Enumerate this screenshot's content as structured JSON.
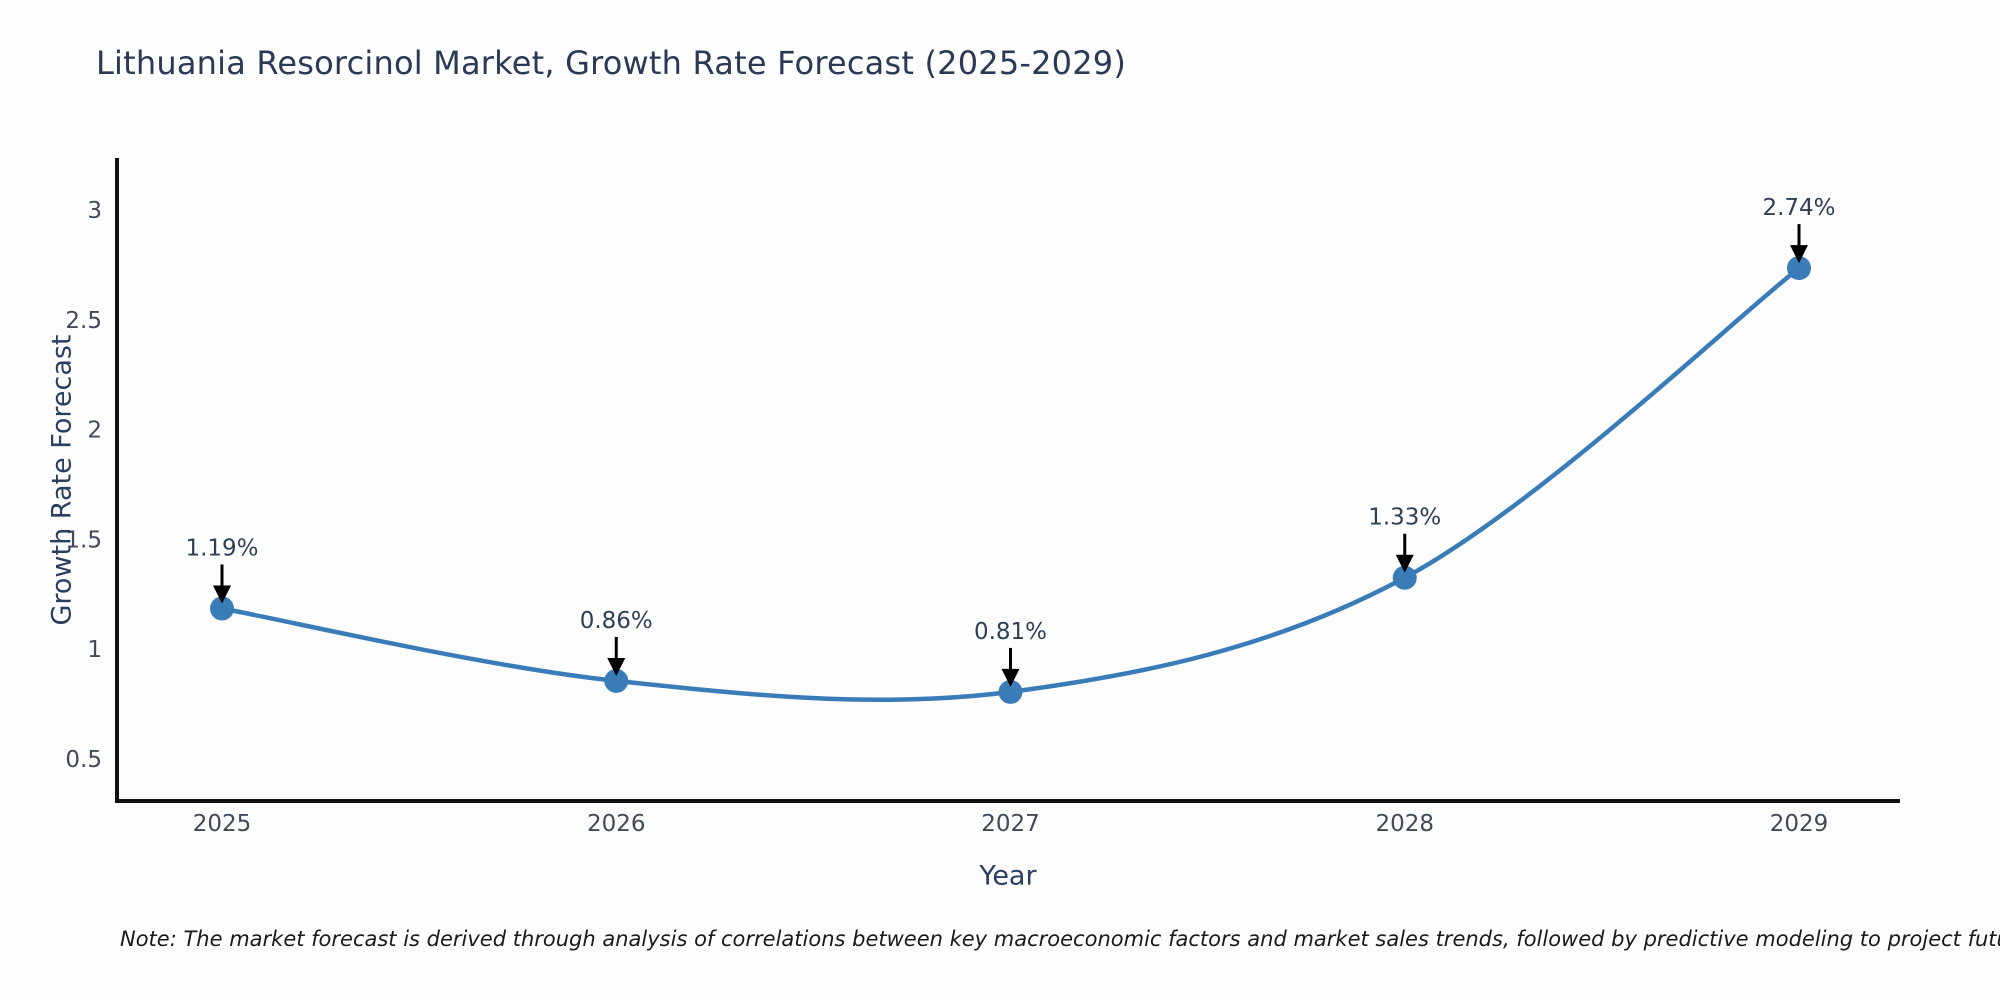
{
  "title": "Lithuania Resorcinol Market, Growth Rate Forecast (2025-2029)",
  "note": "Note: The market forecast is derived through analysis of correlations between key macroeconomic factors and market sales trends, followed by predictive modeling to project future sales",
  "chart_data": {
    "type": "line",
    "title": "Lithuania Resorcinol Market, Growth Rate Forecast (2025-2029)",
    "xlabel": "Year",
    "ylabel": "Growth Rate Forecast",
    "x": [
      2025,
      2026,
      2027,
      2028,
      2029
    ],
    "values": [
      1.19,
      0.86,
      0.81,
      1.33,
      2.74
    ],
    "point_labels": [
      "1.19%",
      "0.86%",
      "0.81%",
      "1.33%",
      "2.74%"
    ],
    "xticks": [
      "2025",
      "2026",
      "2027",
      "2028",
      "2029"
    ],
    "yticks": [
      0.5,
      1,
      1.5,
      2,
      2.5,
      3
    ],
    "ylim": [
      0.3,
      3.25
    ],
    "line_shape": "spline",
    "grid": false,
    "legend_position": "none",
    "line_color": "#3a7cb8",
    "marker_color": "#3a7cb8",
    "annotation_arrow_color": "#000000",
    "background_color": "#fdfdfd",
    "axis_color": "#111111"
  }
}
